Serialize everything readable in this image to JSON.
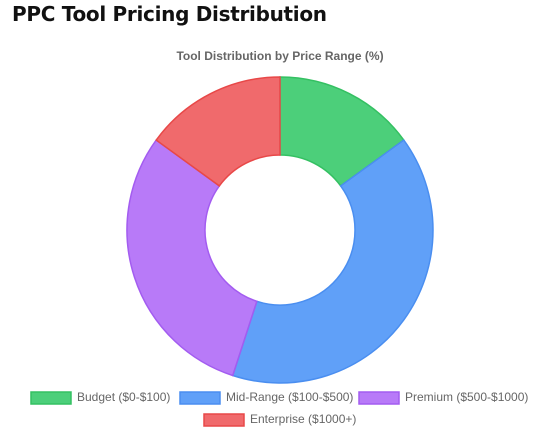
{
  "heading": "PPC Tool Pricing Distribution",
  "chart_data": {
    "type": "doughnut",
    "title": "Tool Distribution by Price Range (%)",
    "categories": [
      "Budget ($0-$100)",
      "Mid-Range ($100-$500)",
      "Premium ($500-$1000)",
      "Enterprise ($1000+)"
    ],
    "values": [
      15,
      40,
      30,
      15
    ],
    "colors": [
      "#4ccf7a",
      "#60a0f8",
      "#b87af8",
      "#f06a6c"
    ],
    "border_colors": [
      "#34c062",
      "#4a8ef0",
      "#a35cf0",
      "#e84848"
    ]
  }
}
